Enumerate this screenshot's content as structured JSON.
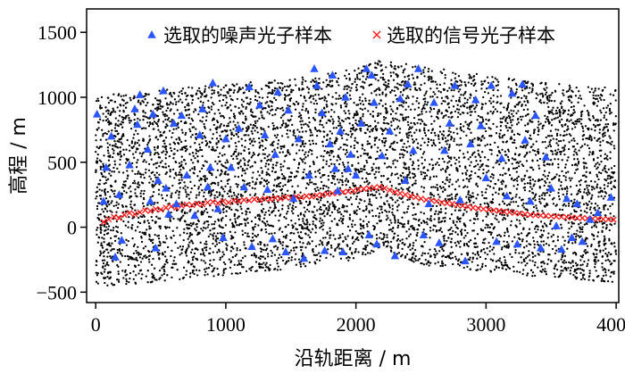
{
  "chart_data": {
    "type": "scatter",
    "xlabel": "沿轨距离 / m",
    "ylabel": "高程 / m",
    "xlim": [
      -70,
      4020
    ],
    "ylim": [
      -580,
      1680
    ],
    "x_ticks": [
      0,
      1000,
      2000,
      3000,
      4000
    ],
    "y_ticks": [
      -500,
      0,
      500,
      1000,
      1500
    ],
    "x_tick_labels": [
      "0",
      "1000",
      "2000",
      "3000",
      "4000"
    ],
    "y_tick_labels": [
      "−500",
      "0",
      "500",
      "1000",
      "1500"
    ],
    "legend_position": "top",
    "colors": {
      "background_photons": "#000000",
      "noise_samples": "#2b55ff",
      "signal_samples": "#ff1a1a"
    },
    "background_band": {
      "x_range": [
        0,
        4000
      ],
      "upper_boundary": [
        [
          0,
          1010
        ],
        [
          500,
          1060
        ],
        [
          1000,
          1100
        ],
        [
          1500,
          1140
        ],
        [
          2000,
          1220
        ],
        [
          2200,
          1290
        ],
        [
          2500,
          1240
        ],
        [
          3000,
          1170
        ],
        [
          3500,
          1110
        ],
        [
          4000,
          1070
        ]
      ],
      "lower_boundary": [
        [
          0,
          -460
        ],
        [
          500,
          -420
        ],
        [
          1000,
          -370
        ],
        [
          1500,
          -320
        ],
        [
          2000,
          -250
        ],
        [
          2200,
          -170
        ],
        [
          2500,
          -290
        ],
        [
          3000,
          -340
        ],
        [
          3500,
          -390
        ],
        [
          4000,
          -430
        ]
      ]
    },
    "series": [
      {
        "name": "选取的噪声光子样本",
        "marker": "triangle",
        "points": [
          [
            10,
            870
          ],
          [
            60,
            200
          ],
          [
            80,
            460
          ],
          [
            120,
            700
          ],
          [
            150,
            -230
          ],
          [
            180,
            250
          ],
          [
            200,
            -100
          ],
          [
            260,
            480
          ],
          [
            300,
            910
          ],
          [
            320,
            790
          ],
          [
            340,
            1020
          ],
          [
            400,
            600
          ],
          [
            420,
            200
          ],
          [
            440,
            870
          ],
          [
            460,
            -160
          ],
          [
            480,
            360
          ],
          [
            520,
            1050
          ],
          [
            540,
            300
          ],
          [
            560,
            100
          ],
          [
            600,
            800
          ],
          [
            620,
            180
          ],
          [
            660,
            860
          ],
          [
            700,
            400
          ],
          [
            760,
            90
          ],
          [
            800,
            710
          ],
          [
            820,
            910
          ],
          [
            860,
            310
          ],
          [
            880,
            460
          ],
          [
            900,
            1110
          ],
          [
            940,
            140
          ],
          [
            980,
            -80
          ],
          [
            1000,
            680
          ],
          [
            1040,
            460
          ],
          [
            1100,
            760
          ],
          [
            1140,
            310
          ],
          [
            1180,
            1080
          ],
          [
            1200,
            -150
          ],
          [
            1260,
            940
          ],
          [
            1300,
            710
          ],
          [
            1320,
            290
          ],
          [
            1360,
            -90
          ],
          [
            1380,
            560
          ],
          [
            1400,
            1040
          ],
          [
            1460,
            -190
          ],
          [
            1480,
            900
          ],
          [
            1520,
            220
          ],
          [
            1560,
            680
          ],
          [
            1600,
            -240
          ],
          [
            1640,
            400
          ],
          [
            1680,
            1220
          ],
          [
            1700,
            1090
          ],
          [
            1740,
            880
          ],
          [
            1760,
            -180
          ],
          [
            1800,
            640
          ],
          [
            1820,
            1170
          ],
          [
            1840,
            450
          ],
          [
            1860,
            280
          ],
          [
            1880,
            740
          ],
          [
            1900,
            -190
          ],
          [
            1920,
            1000
          ],
          [
            1940,
            450
          ],
          [
            1960,
            560
          ],
          [
            2000,
            400
          ],
          [
            2040,
            800
          ],
          [
            2080,
            1220
          ],
          [
            2100,
            -60
          ],
          [
            2120,
            1170
          ],
          [
            2140,
            960
          ],
          [
            2160,
            -130
          ],
          [
            2200,
            550
          ],
          [
            2260,
            740
          ],
          [
            2300,
            -220
          ],
          [
            2340,
            990
          ],
          [
            2380,
            360
          ],
          [
            2400,
            1100
          ],
          [
            2440,
            590
          ],
          [
            2480,
            1220
          ],
          [
            2520,
            -60
          ],
          [
            2560,
            180
          ],
          [
            2600,
            960
          ],
          [
            2640,
            -120
          ],
          [
            2680,
            590
          ],
          [
            2720,
            800
          ],
          [
            2760,
            1090
          ],
          [
            2800,
            210
          ],
          [
            2840,
            -260
          ],
          [
            2880,
            640
          ],
          [
            2920,
            980
          ],
          [
            2960,
            780
          ],
          [
            3000,
            380
          ],
          [
            3040,
            1090
          ],
          [
            3080,
            -110
          ],
          [
            3120,
            530
          ],
          [
            3160,
            240
          ],
          [
            3200,
            1030
          ],
          [
            3240,
            -130
          ],
          [
            3280,
            1100
          ],
          [
            3300,
            670
          ],
          [
            3340,
            200
          ],
          [
            3380,
            860
          ],
          [
            3420,
            -160
          ],
          [
            3460,
            540
          ],
          [
            3500,
            300
          ],
          [
            3540,
            10
          ],
          [
            3580,
            -170
          ],
          [
            3620,
            220
          ],
          [
            3660,
            -80
          ],
          [
            3700,
            180
          ],
          [
            3740,
            -110
          ],
          [
            3800,
            60
          ],
          [
            3860,
            110
          ],
          [
            3960,
            230
          ]
        ]
      },
      {
        "name": "选取的信号光子样本",
        "marker": "x",
        "points": [
          [
            60,
            40
          ],
          [
            100,
            60
          ],
          [
            140,
            80
          ],
          [
            180,
            70
          ],
          [
            220,
            95
          ],
          [
            260,
            110
          ],
          [
            300,
            100
          ],
          [
            340,
            115
          ],
          [
            380,
            130
          ],
          [
            420,
            125
          ],
          [
            460,
            140
          ],
          [
            500,
            135
          ],
          [
            540,
            150
          ],
          [
            580,
            160
          ],
          [
            620,
            150
          ],
          [
            660,
            165
          ],
          [
            700,
            175
          ],
          [
            740,
            170
          ],
          [
            780,
            180
          ],
          [
            820,
            175
          ],
          [
            860,
            190
          ],
          [
            900,
            195
          ],
          [
            940,
            185
          ],
          [
            980,
            200
          ],
          [
            1020,
            190
          ],
          [
            1060,
            205
          ],
          [
            1100,
            200
          ],
          [
            1140,
            210
          ],
          [
            1180,
            205
          ],
          [
            1220,
            215
          ],
          [
            1260,
            210
          ],
          [
            1300,
            220
          ],
          [
            1340,
            215
          ],
          [
            1380,
            225
          ],
          [
            1420,
            220
          ],
          [
            1460,
            230
          ],
          [
            1500,
            225
          ],
          [
            1540,
            235
          ],
          [
            1580,
            230
          ],
          [
            1620,
            240
          ],
          [
            1660,
            235
          ],
          [
            1700,
            245
          ],
          [
            1740,
            250
          ],
          [
            1780,
            255
          ],
          [
            1820,
            260
          ],
          [
            1860,
            265
          ],
          [
            1900,
            270
          ],
          [
            1940,
            275
          ],
          [
            1980,
            280
          ],
          [
            2020,
            290
          ],
          [
            2060,
            295
          ],
          [
            2100,
            300
          ],
          [
            2140,
            305
          ],
          [
            2180,
            310
          ],
          [
            2220,
            300
          ],
          [
            2260,
            285
          ],
          [
            2300,
            270
          ],
          [
            2340,
            260
          ],
          [
            2380,
            250
          ],
          [
            2420,
            240
          ],
          [
            2460,
            230
          ],
          [
            2500,
            220
          ],
          [
            2540,
            210
          ],
          [
            2580,
            205
          ],
          [
            2620,
            200
          ],
          [
            2660,
            190
          ],
          [
            2700,
            185
          ],
          [
            2740,
            180
          ],
          [
            2780,
            170
          ],
          [
            2820,
            165
          ],
          [
            2860,
            160
          ],
          [
            2900,
            150
          ],
          [
            2940,
            145
          ],
          [
            2980,
            140
          ],
          [
            3020,
            135
          ],
          [
            3060,
            130
          ],
          [
            3100,
            125
          ],
          [
            3140,
            120
          ],
          [
            3180,
            115
          ],
          [
            3220,
            110
          ],
          [
            3260,
            105
          ],
          [
            3300,
            100
          ],
          [
            3340,
            95
          ],
          [
            3380,
            92
          ],
          [
            3420,
            90
          ],
          [
            3460,
            88
          ],
          [
            3500,
            85
          ],
          [
            3540,
            82
          ],
          [
            3580,
            80
          ],
          [
            3620,
            78
          ],
          [
            3660,
            75
          ],
          [
            3700,
            72
          ],
          [
            3740,
            70
          ],
          [
            3780,
            68
          ],
          [
            3820,
            66
          ],
          [
            3860,
            64
          ],
          [
            3900,
            62
          ],
          [
            3940,
            60
          ],
          [
            3980,
            58
          ]
        ]
      }
    ]
  }
}
